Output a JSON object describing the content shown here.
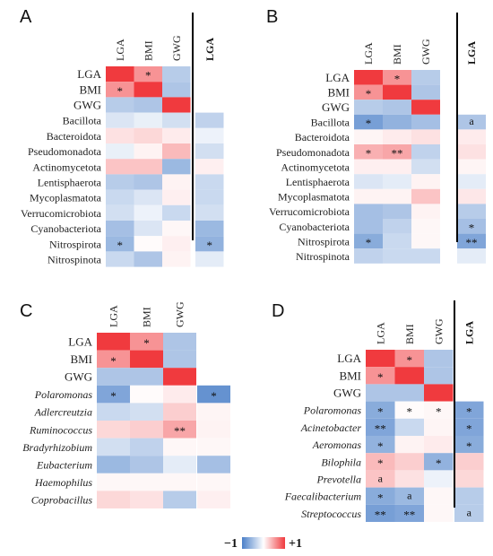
{
  "chart_data": [
    {
      "panel": "A",
      "type": "heatmap",
      "columns": [
        "LGA",
        "BMI",
        "GWG"
      ],
      "extra_column": "LGA",
      "rows": [
        "LGA",
        "BMI",
        "GWG",
        "Bacillota",
        "Bacteroidota",
        "Pseudomonadota",
        "Actinomycetota",
        "Lentisphaerota",
        "Mycoplasmatota",
        "Verrucomicrobiota",
        "Cyanobacteriota",
        "Nitrospirota",
        "Nitrospinota"
      ],
      "italic_rows": false,
      "values": [
        [
          1,
          0.55,
          -0.4,
          null
        ],
        [
          0.55,
          1,
          -0.45,
          null
        ],
        [
          -0.4,
          -0.45,
          1,
          null
        ],
        [
          -0.2,
          -0.12,
          -0.25,
          -0.35
        ],
        [
          0.15,
          0.2,
          0.1,
          -0.1
        ],
        [
          -0.12,
          0.06,
          0.35,
          -0.25
        ],
        [
          0.3,
          0.3,
          -0.55,
          0.08
        ],
        [
          -0.4,
          -0.45,
          0.06,
          -0.3
        ],
        [
          -0.3,
          -0.2,
          0.08,
          -0.3
        ],
        [
          -0.25,
          -0.1,
          -0.3,
          -0.25
        ],
        [
          -0.5,
          -0.2,
          0.04,
          -0.55
        ],
        [
          -0.55,
          0.02,
          0.08,
          -0.6
        ],
        [
          -0.3,
          -0.45,
          0.06,
          -0.15
        ]
      ],
      "marks": [
        [
          "",
          "*",
          "",
          ""
        ],
        [
          "*",
          "",
          "",
          ""
        ],
        [
          "",
          "",
          "",
          ""
        ],
        [
          "",
          "",
          "",
          ""
        ],
        [
          "",
          "",
          "",
          ""
        ],
        [
          "",
          "",
          "",
          ""
        ],
        [
          "",
          "",
          "",
          ""
        ],
        [
          "",
          "",
          "",
          ""
        ],
        [
          "",
          "",
          "",
          ""
        ],
        [
          "",
          "",
          "",
          ""
        ],
        [
          "",
          "",
          "",
          ""
        ],
        [
          "*",
          "",
          "",
          "*"
        ],
        [
          "",
          "",
          "",
          ""
        ]
      ]
    },
    {
      "panel": "B",
      "type": "heatmap",
      "columns": [
        "LGA",
        "BMI",
        "GWG"
      ],
      "extra_column": "LGA",
      "rows": [
        "LGA",
        "BMI",
        "GWG",
        "Bacillota",
        "Bacteroidota",
        "Pseudomonadota",
        "Actinomycetota",
        "Lentisphaerota",
        "Mycoplasmatota",
        "Verrucomicrobiota",
        "Cyanobacteriota",
        "Nitrospirota",
        "Nitrospinota"
      ],
      "italic_rows": false,
      "values": [
        [
          1,
          0.55,
          -0.4,
          null
        ],
        [
          0.55,
          1,
          -0.45,
          null
        ],
        [
          -0.4,
          -0.45,
          1,
          null
        ],
        [
          -0.75,
          -0.6,
          -0.5,
          -0.45
        ],
        [
          0.05,
          0.1,
          0.15,
          0.1
        ],
        [
          0.4,
          0.45,
          -0.35,
          0.15
        ],
        [
          0.08,
          0.08,
          -0.25,
          0.05
        ],
        [
          -0.2,
          -0.15,
          0.06,
          -0.15
        ],
        [
          0.06,
          0.06,
          0.3,
          0.12
        ],
        [
          -0.5,
          -0.45,
          0.06,
          -0.4
        ],
        [
          -0.5,
          -0.35,
          0.04,
          -0.5
        ],
        [
          -0.65,
          -0.3,
          0.04,
          -0.7
        ],
        [
          -0.35,
          -0.3,
          -0.3,
          -0.15
        ]
      ],
      "marks": [
        [
          "",
          "*",
          "",
          ""
        ],
        [
          "*",
          "",
          "",
          ""
        ],
        [
          "",
          "",
          "",
          ""
        ],
        [
          "*",
          "",
          "",
          "a"
        ],
        [
          "",
          "",
          "",
          ""
        ],
        [
          "*",
          "**",
          "",
          ""
        ],
        [
          "",
          "",
          "",
          ""
        ],
        [
          "",
          "",
          "",
          ""
        ],
        [
          "",
          "",
          "",
          ""
        ],
        [
          "",
          "",
          "",
          ""
        ],
        [
          "",
          "",
          "",
          "*"
        ],
        [
          "*",
          "",
          "",
          "**"
        ],
        [
          "",
          "",
          "",
          ""
        ]
      ]
    },
    {
      "panel": "C",
      "type": "heatmap",
      "columns": [
        "LGA",
        "BMI",
        "GWG"
      ],
      "extra_column": "",
      "rows": [
        "LGA",
        "BMI",
        "GWG",
        "Polaromonas",
        "Adlercreutzia",
        "Ruminococcus",
        "Bradyrhizobium",
        "Eubacterium",
        "Haemophilus",
        "Coprobacillus"
      ],
      "italic_rows": true,
      "values": [
        [
          1,
          0.55,
          -0.45,
          null
        ],
        [
          0.55,
          1,
          -0.45,
          null
        ],
        [
          -0.45,
          -0.45,
          1,
          null
        ],
        [
          -0.7,
          0.02,
          0.1,
          -0.85
        ],
        [
          -0.3,
          -0.25,
          0.25,
          0.05
        ],
        [
          0.2,
          0.25,
          0.45,
          0.06
        ],
        [
          -0.25,
          -0.35,
          0.04,
          0.04
        ],
        [
          -0.55,
          -0.45,
          -0.15,
          -0.5
        ],
        [
          0.04,
          0.04,
          0.04,
          0.04
        ],
        [
          0.2,
          0.15,
          -0.4,
          0.08
        ]
      ],
      "marks": [
        [
          "",
          "*",
          "",
          ""
        ],
        [
          "*",
          "",
          "",
          ""
        ],
        [
          "",
          "",
          "",
          ""
        ],
        [
          "*",
          "",
          "",
          "*"
        ],
        [
          "",
          "",
          "",
          ""
        ],
        [
          "",
          "",
          "**",
          ""
        ],
        [
          "",
          "",
          "",
          ""
        ],
        [
          "",
          "",
          "",
          ""
        ],
        [
          "",
          "",
          "",
          ""
        ],
        [
          "",
          "",
          "",
          ""
        ]
      ]
    },
    {
      "panel": "D",
      "type": "heatmap",
      "columns": [
        "LGA",
        "BMI",
        "GWG"
      ],
      "extra_column": "LGA",
      "rows": [
        "LGA",
        "BMI",
        "GWG",
        "Polaromonas",
        "Acinetobacter",
        "Aeromonas",
        "Bilophila",
        "Prevotella",
        "Faecalibacterium",
        "Streptococcus"
      ],
      "italic_rows": true,
      "values": [
        [
          1,
          0.55,
          -0.45,
          null
        ],
        [
          0.55,
          1,
          -0.45,
          null
        ],
        [
          -0.45,
          -0.45,
          1,
          null
        ],
        [
          -0.65,
          0.02,
          0.04,
          -0.7
        ],
        [
          -0.7,
          -0.3,
          0.05,
          -0.7
        ],
        [
          -0.6,
          0.06,
          0.1,
          -0.65
        ],
        [
          0.35,
          0.25,
          -0.6,
          0.25
        ],
        [
          0.3,
          0.15,
          -0.1,
          0.2
        ],
        [
          -0.65,
          -0.55,
          0.04,
          -0.4
        ],
        [
          -0.75,
          -0.7,
          0.04,
          -0.4
        ]
      ],
      "marks": [
        [
          "",
          "*",
          "",
          ""
        ],
        [
          "*",
          "",
          "",
          ""
        ],
        [
          "",
          "",
          "",
          ""
        ],
        [
          "*",
          "*",
          "*",
          "*"
        ],
        [
          "**",
          "",
          "",
          "*"
        ],
        [
          "*",
          "",
          "",
          "*"
        ],
        [
          "*",
          "",
          "*",
          ""
        ],
        [
          "a",
          "",
          "",
          ""
        ],
        [
          "*",
          "a",
          "",
          ""
        ],
        [
          "**",
          "**",
          "",
          "a"
        ]
      ]
    }
  ],
  "legend": {
    "min_label": "−1",
    "max_label": "+1",
    "neg_color": "#4a7fc8",
    "zero_color": "#ffffff",
    "pos_color": "#f03a3e"
  }
}
